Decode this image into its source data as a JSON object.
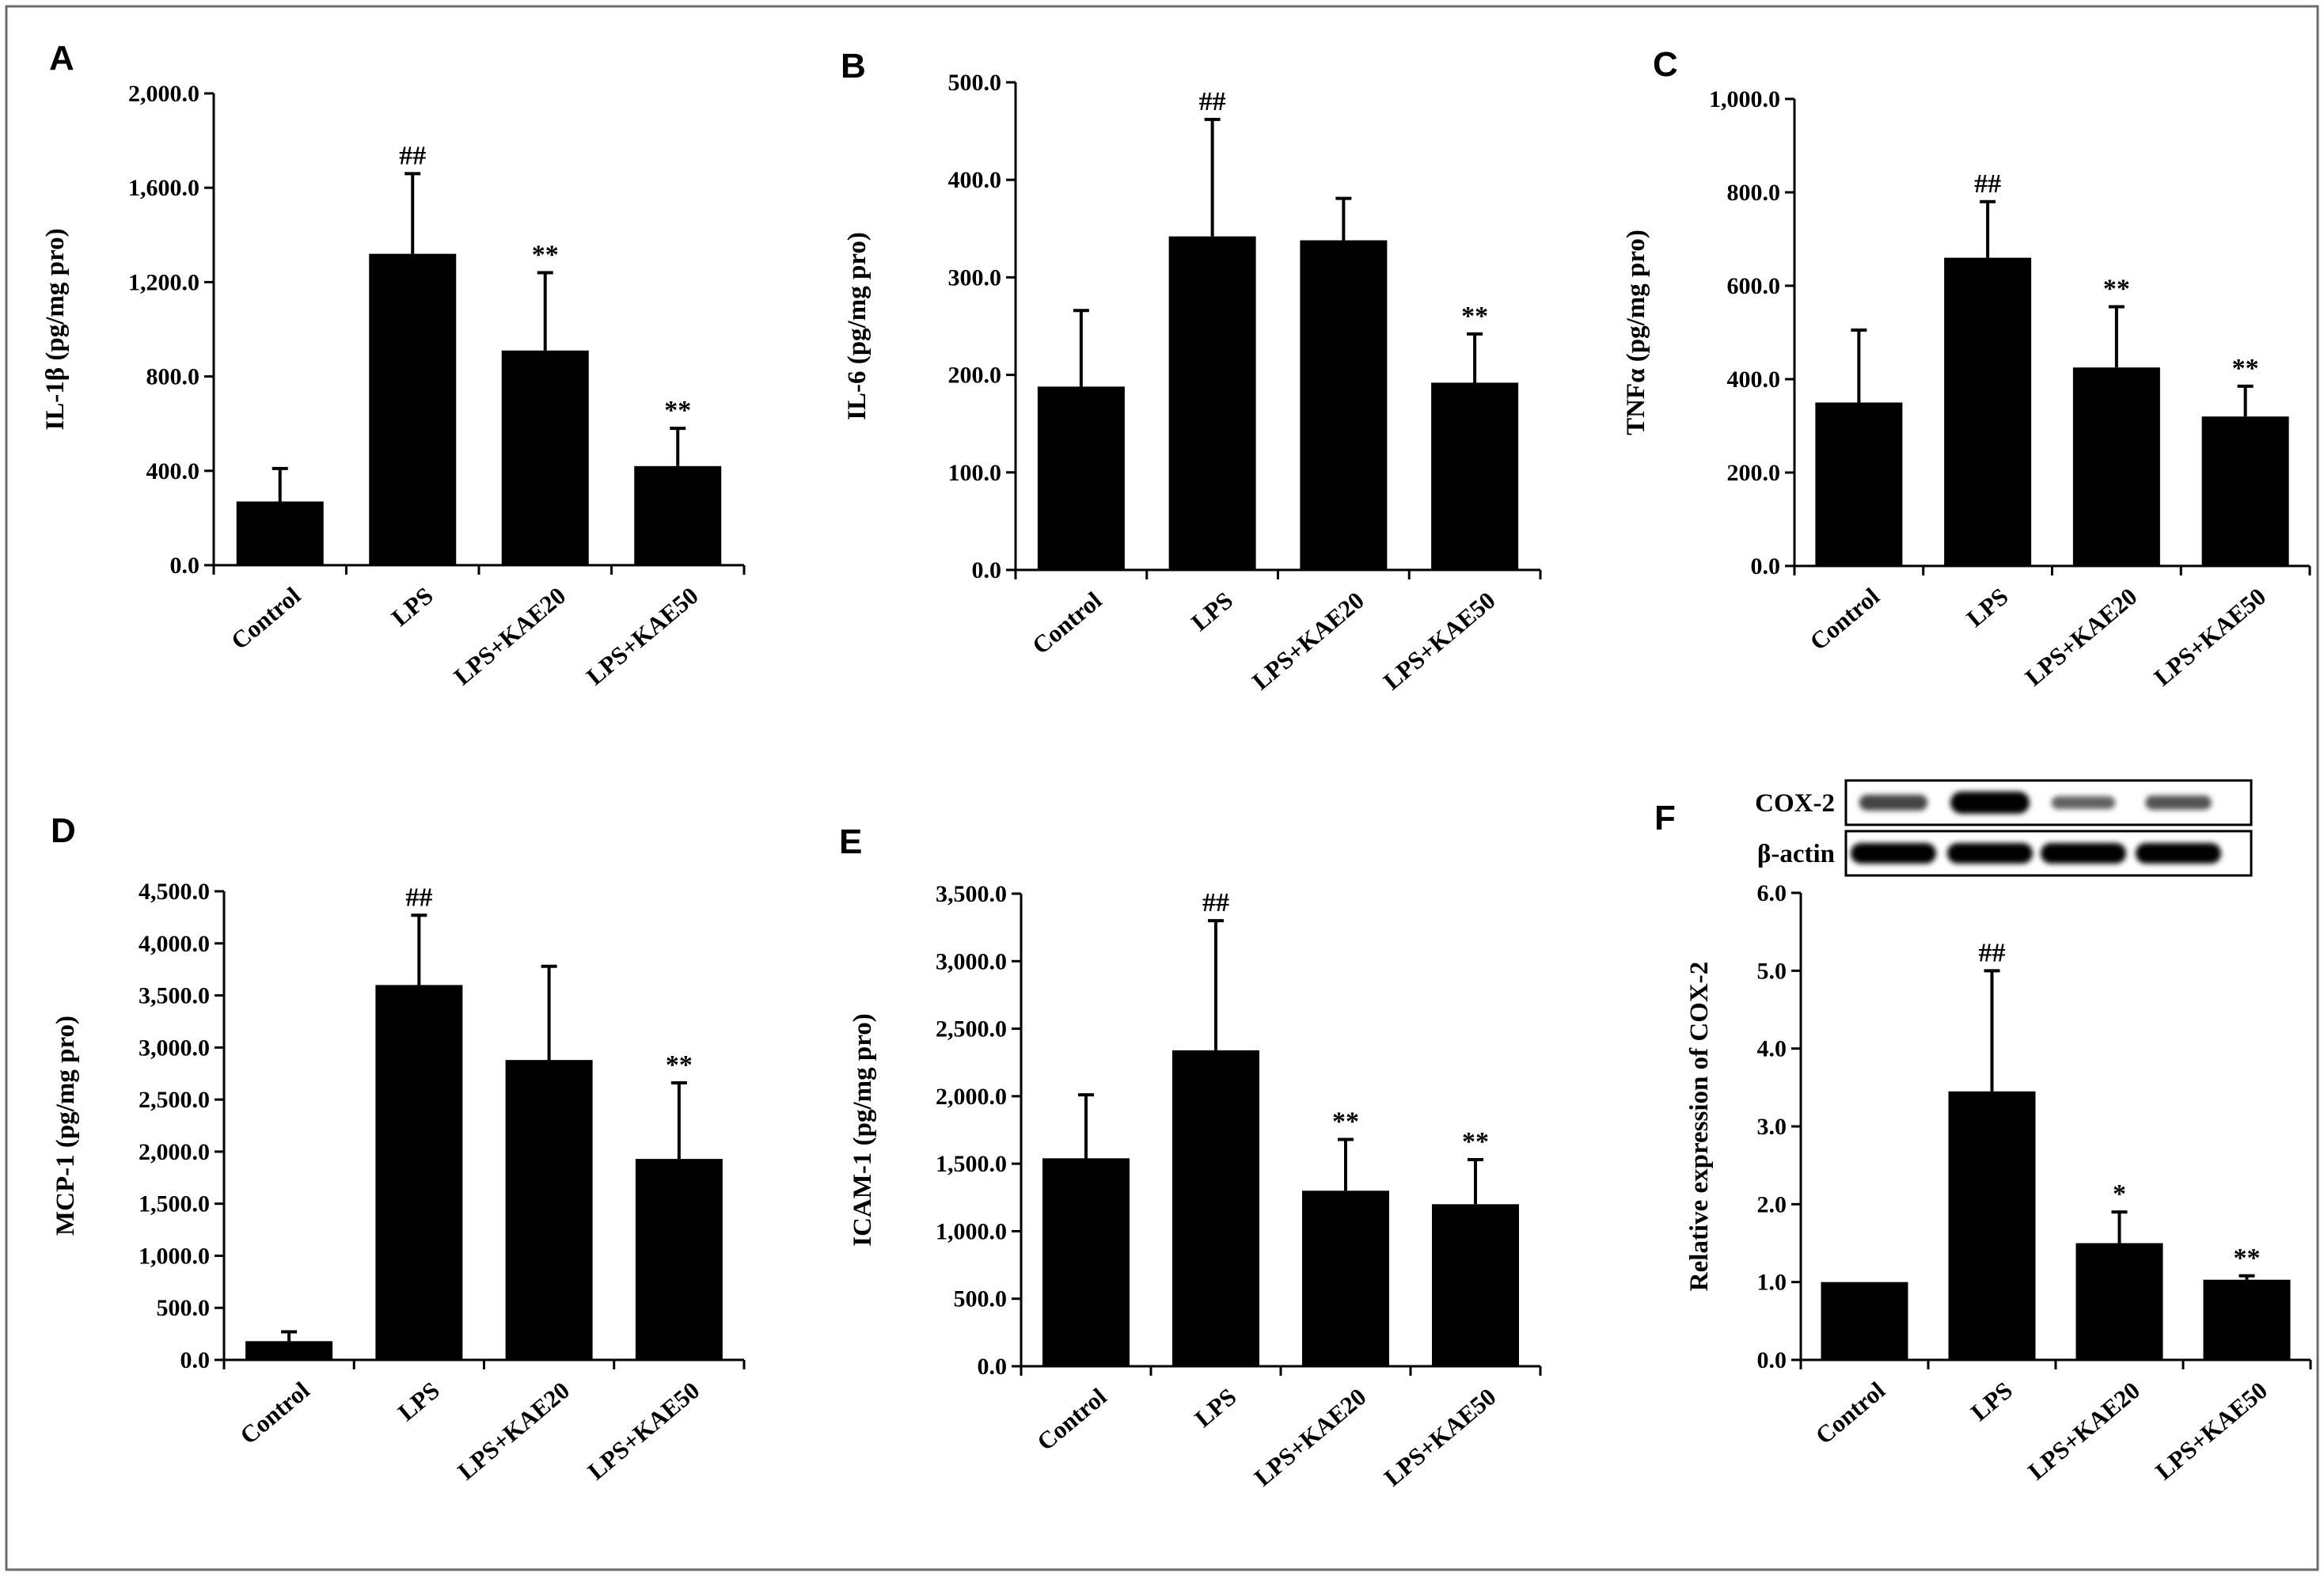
{
  "figure": {
    "categories": [
      "Control",
      "LPS",
      "LPS+KAE20",
      "LPS+KAE50"
    ]
  },
  "blot": {
    "rows": [
      "COX-2",
      "β-actin"
    ],
    "cox2_intensity": [
      0.55,
      1.0,
      0.35,
      0.45
    ],
    "actin_intensity": [
      1.0,
      1.0,
      1.0,
      1.0
    ]
  },
  "chart_data": [
    {
      "panel": "A",
      "type": "bar",
      "ylabel": "IL-1β (pg/mg pro)",
      "ylim": [
        0,
        2000
      ],
      "ytick_step": 400,
      "ytick_labels": [
        "0.0",
        "400.0",
        "800.0",
        "1,200.0",
        "1,600.0",
        "2,000.0"
      ],
      "categories": [
        "Control",
        "LPS",
        "LPS+KAE20",
        "LPS+KAE50"
      ],
      "values": [
        270,
        1320,
        910,
        420
      ],
      "errors": [
        140,
        340,
        330,
        160
      ],
      "annotations": [
        "",
        "##",
        "**",
        "**"
      ]
    },
    {
      "panel": "B",
      "type": "bar",
      "ylabel": "IL-6 (pg/mg pro)",
      "ylim": [
        0,
        500
      ],
      "ytick_step": 100,
      "ytick_labels": [
        "0.0",
        "100.0",
        "200.0",
        "300.0",
        "400.0",
        "500.0"
      ],
      "categories": [
        "Control",
        "LPS",
        "LPS+KAE20",
        "LPS+KAE50"
      ],
      "values": [
        188,
        342,
        338,
        192
      ],
      "errors": [
        78,
        120,
        43,
        50
      ],
      "annotations": [
        "",
        "##",
        "",
        "**"
      ]
    },
    {
      "panel": "C",
      "type": "bar",
      "ylabel": "TNFα (pg/mg pro)",
      "ylim": [
        0,
        1000
      ],
      "ytick_step": 200,
      "ytick_labels": [
        "0.0",
        "200.0",
        "400.0",
        "600.0",
        "800.0",
        "1,000.0"
      ],
      "categories": [
        "Control",
        "LPS",
        "LPS+KAE20",
        "LPS+KAE50"
      ],
      "values": [
        350,
        660,
        425,
        320
      ],
      "errors": [
        155,
        120,
        130,
        65
      ],
      "annotations": [
        "",
        "##",
        "**",
        "**"
      ]
    },
    {
      "panel": "D",
      "type": "bar",
      "ylabel": "MCP-1 (pg/mg pro)",
      "ylim": [
        0,
        4500
      ],
      "ytick_step": 500,
      "ytick_labels": [
        "0.0",
        "500.0",
        "1,000.0",
        "1,500.0",
        "2,000.0",
        "2,500.0",
        "3,000.0",
        "3,500.0",
        "4,000.0",
        "4,500.0"
      ],
      "categories": [
        "Control",
        "LPS",
        "LPS+KAE20",
        "LPS+KAE50"
      ],
      "values": [
        180,
        3600,
        2880,
        1930
      ],
      "errors": [
        90,
        670,
        900,
        730
      ],
      "annotations": [
        "",
        "##",
        "",
        "**"
      ]
    },
    {
      "panel": "E",
      "type": "bar",
      "ylabel": "ICAM-1 (pg/mg pro)",
      "ylim": [
        0,
        3500
      ],
      "ytick_step": 500,
      "ytick_labels": [
        "0.0",
        "500.0",
        "1,000.0",
        "1,500.0",
        "2,000.0",
        "2,500.0",
        "3,000.0",
        "3,500.0"
      ],
      "categories": [
        "Control",
        "LPS",
        "LPS+KAE20",
        "LPS+KAE50"
      ],
      "values": [
        1540,
        2340,
        1300,
        1200
      ],
      "errors": [
        470,
        960,
        380,
        330
      ],
      "annotations": [
        "",
        "##",
        "**",
        "**"
      ]
    },
    {
      "panel": "F",
      "type": "bar",
      "ylabel": "Relative expression of COX-2",
      "ylim": [
        0,
        6
      ],
      "ytick_step": 1,
      "ytick_labels": [
        "0.0",
        "1.0",
        "2.0",
        "3.0",
        "4.0",
        "5.0",
        "6.0"
      ],
      "categories": [
        "Control",
        "LPS",
        "LPS+KAE20",
        "LPS+KAE50"
      ],
      "values": [
        1.0,
        3.45,
        1.5,
        1.03
      ],
      "errors": [
        0.0,
        1.55,
        0.4,
        0.05
      ],
      "annotations": [
        "",
        "##",
        "*",
        "**"
      ]
    }
  ]
}
